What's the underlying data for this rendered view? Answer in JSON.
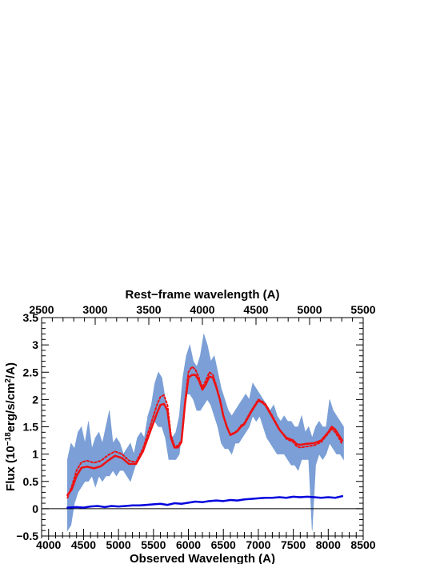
{
  "chart_data": {
    "type": "line",
    "title": "",
    "xlabel": "Observed Wavelength (A)",
    "x2label": "Rest−frame wavelength (A)",
    "ylabel": {
      "prefix": "Flux (10",
      "exp1": "−18",
      "mid": "erg/s/cm",
      "exp2": "2",
      "suffix": "/A)"
    },
    "xlim": [
      3900,
      8500
    ],
    "ylim": [
      -0.5,
      3.5
    ],
    "x2lim": [
      2500,
      5500
    ],
    "x_ticks": [
      4000,
      4500,
      5000,
      5500,
      6000,
      6500,
      7000,
      7500,
      8000,
      8500
    ],
    "x_tick_labels": [
      "4000",
      "4500",
      "5000",
      "5500",
      "6000",
      "6500",
      "7000",
      "7500",
      "8000",
      "8500"
    ],
    "x2_ticks": [
      2500,
      3000,
      3500,
      4000,
      4500,
      5000,
      5500
    ],
    "x2_tick_labels": [
      "2500",
      "3000",
      "3500",
      "4000",
      "4500",
      "5000",
      "5500"
    ],
    "y_ticks": [
      -0.5,
      0,
      0.5,
      1,
      1.5,
      2,
      2.5,
      3,
      3.5
    ],
    "y_tick_labels": [
      "−0.5",
      "0",
      "0.5",
      "1",
      "1.5",
      "2",
      "2.5",
      "3",
      "3.5"
    ],
    "zero_line": 0,
    "legend": "none",
    "grid": false,
    "colors": {
      "band": "#7b9fd6",
      "model": "#ee1111",
      "error": "#0000dd",
      "zero": "#000000"
    },
    "series": [
      {
        "role": "observed-spectrum-band",
        "x": [
          4270,
          4320,
          4370,
          4420,
          4470,
          4520,
          4570,
          4620,
          4670,
          4720,
          4770,
          4820,
          4870,
          4920,
          4970,
          5020,
          5070,
          5120,
          5170,
          5220,
          5270,
          5320,
          5370,
          5420,
          5470,
          5520,
          5570,
          5620,
          5670,
          5720,
          5770,
          5820,
          5870,
          5920,
          5970,
          6020,
          6070,
          6120,
          6170,
          6220,
          6270,
          6320,
          6370,
          6420,
          6470,
          6520,
          6570,
          6620,
          6670,
          6720,
          6770,
          6820,
          6870,
          6920,
          6970,
          7020,
          7070,
          7120,
          7170,
          7220,
          7270,
          7320,
          7370,
          7420,
          7470,
          7520,
          7570,
          7620,
          7670,
          7720,
          7770,
          7820,
          7870,
          7920,
          7970,
          8020,
          8070,
          8120,
          8170,
          8220
        ],
        "lower": [
          -0.4,
          -0.3,
          0.1,
          0.3,
          0.4,
          0.5,
          0.5,
          0.6,
          0.4,
          0.6,
          0.5,
          0.6,
          0.6,
          0.7,
          0.6,
          0.7,
          0.7,
          0.6,
          0.5,
          0.7,
          0.9,
          1.0,
          1.1,
          1.4,
          1.5,
          1.6,
          1.5,
          1.5,
          1.3,
          0.9,
          0.9,
          0.9,
          1.0,
          1.6,
          2.1,
          2.1,
          2.0,
          1.8,
          1.8,
          1.9,
          2.0,
          1.9,
          1.7,
          1.5,
          1.2,
          1.1,
          1.1,
          1.0,
          1.2,
          1.2,
          1.3,
          1.4,
          1.5,
          1.7,
          1.6,
          1.7,
          1.5,
          1.3,
          1.2,
          1.1,
          1.0,
          1.0,
          1.0,
          0.9,
          0.8,
          0.8,
          0.7,
          0.9,
          0.9,
          0.9,
          -0.4,
          0.8,
          1.0,
          0.9,
          1.0,
          1.2,
          1.1,
          1.0,
          1.0,
          0.9
        ],
        "upper": [
          0.9,
          1.2,
          1.1,
          1.4,
          1.5,
          1.2,
          1.6,
          1.1,
          1.3,
          1.4,
          1.2,
          1.5,
          1.8,
          1.2,
          1.3,
          1.2,
          1.0,
          1.1,
          1.2,
          1.0,
          1.3,
          1.4,
          1.3,
          1.7,
          1.9,
          2.3,
          2.5,
          2.4,
          2.0,
          1.5,
          1.3,
          1.4,
          1.7,
          2.4,
          2.8,
          3.0,
          2.7,
          2.6,
          2.8,
          3.2,
          3.0,
          2.7,
          2.8,
          2.5,
          2.2,
          2.0,
          1.8,
          1.7,
          1.8,
          1.9,
          2.0,
          2.1,
          2.0,
          2.3,
          2.2,
          2.1,
          2.0,
          1.9,
          1.8,
          1.9,
          1.7,
          1.6,
          1.7,
          1.6,
          1.6,
          1.5,
          1.5,
          1.7,
          1.4,
          1.5,
          1.3,
          1.5,
          1.6,
          1.5,
          1.5,
          2.0,
          1.8,
          1.7,
          1.6,
          1.5
        ]
      },
      {
        "role": "model-solid",
        "x": [
          4270,
          4330,
          4400,
          4470,
          4550,
          4650,
          4750,
          4850,
          4950,
          5050,
          5150,
          5250,
          5350,
          5450,
          5550,
          5600,
          5650,
          5700,
          5750,
          5800,
          5850,
          5900,
          5950,
          6000,
          6050,
          6100,
          6150,
          6200,
          6250,
          6300,
          6350,
          6400,
          6450,
          6500,
          6550,
          6600,
          6650,
          6700,
          6750,
          6800,
          6900,
          7000,
          7050,
          7100,
          7200,
          7300,
          7400,
          7500,
          7550,
          7600,
          7700,
          7800,
          7900,
          8000,
          8050,
          8100,
          8150,
          8200
        ],
        "y": [
          0.25,
          0.35,
          0.6,
          0.75,
          0.77,
          0.74,
          0.78,
          0.88,
          0.97,
          0.93,
          0.82,
          0.82,
          1.05,
          1.4,
          1.75,
          1.9,
          1.92,
          1.8,
          1.3,
          1.12,
          1.12,
          1.22,
          1.9,
          2.4,
          2.45,
          2.45,
          2.35,
          2.18,
          2.28,
          2.42,
          2.4,
          2.22,
          2.0,
          1.7,
          1.5,
          1.35,
          1.38,
          1.42,
          1.5,
          1.55,
          1.78,
          1.98,
          1.95,
          1.9,
          1.68,
          1.45,
          1.3,
          1.25,
          1.18,
          1.17,
          1.19,
          1.2,
          1.25,
          1.4,
          1.5,
          1.45,
          1.35,
          1.25
        ]
      },
      {
        "role": "model-dotted",
        "x": [
          4270,
          4330,
          4400,
          4470,
          4550,
          4650,
          4750,
          4850,
          4950,
          5050,
          5150,
          5250,
          5350,
          5450,
          5550,
          5600,
          5650,
          5700,
          5750,
          5800,
          5850,
          5900,
          5950,
          6000,
          6050,
          6100,
          6150,
          6200,
          6250,
          6300,
          6350,
          6400,
          6450,
          6500,
          6550,
          6600,
          6650,
          6700,
          6750,
          6800,
          6900,
          7000,
          7050,
          7100,
          7200,
          7300,
          7400,
          7500,
          7550,
          7600,
          7700,
          7800,
          7900,
          8000,
          8050,
          8100,
          8150,
          8200
        ],
        "y": [
          0.2,
          0.4,
          0.7,
          0.85,
          0.88,
          0.84,
          0.88,
          0.98,
          1.05,
          1.0,
          0.88,
          0.85,
          1.1,
          1.5,
          1.9,
          2.05,
          2.08,
          1.9,
          1.35,
          1.15,
          1.15,
          1.25,
          1.95,
          2.5,
          2.6,
          2.55,
          2.4,
          2.22,
          2.35,
          2.5,
          2.45,
          2.25,
          2.0,
          1.7,
          1.5,
          1.36,
          1.39,
          1.43,
          1.52,
          1.57,
          1.8,
          2.0,
          1.97,
          1.92,
          1.7,
          1.46,
          1.28,
          1.22,
          1.14,
          1.12,
          1.14,
          1.16,
          1.22,
          1.38,
          1.46,
          1.4,
          1.3,
          1.18
        ]
      },
      {
        "role": "error-spectrum",
        "x": [
          4270,
          4400,
          4500,
          4600,
          4700,
          4800,
          4900,
          5000,
          5100,
          5200,
          5300,
          5400,
          5500,
          5600,
          5700,
          5800,
          5900,
          6000,
          6100,
          6200,
          6300,
          6400,
          6500,
          6600,
          6700,
          6800,
          6900,
          7000,
          7100,
          7200,
          7300,
          7400,
          7500,
          7600,
          7700,
          7800,
          7900,
          8000,
          8100,
          8200
        ],
        "y": [
          0.02,
          0.03,
          0.02,
          0.04,
          0.05,
          0.03,
          0.05,
          0.04,
          0.05,
          0.06,
          0.06,
          0.07,
          0.08,
          0.09,
          0.07,
          0.1,
          0.09,
          0.11,
          0.13,
          0.12,
          0.14,
          0.15,
          0.14,
          0.16,
          0.15,
          0.17,
          0.18,
          0.19,
          0.2,
          0.2,
          0.21,
          0.2,
          0.22,
          0.21,
          0.22,
          0.21,
          0.2,
          0.21,
          0.2,
          0.23
        ]
      }
    ]
  }
}
